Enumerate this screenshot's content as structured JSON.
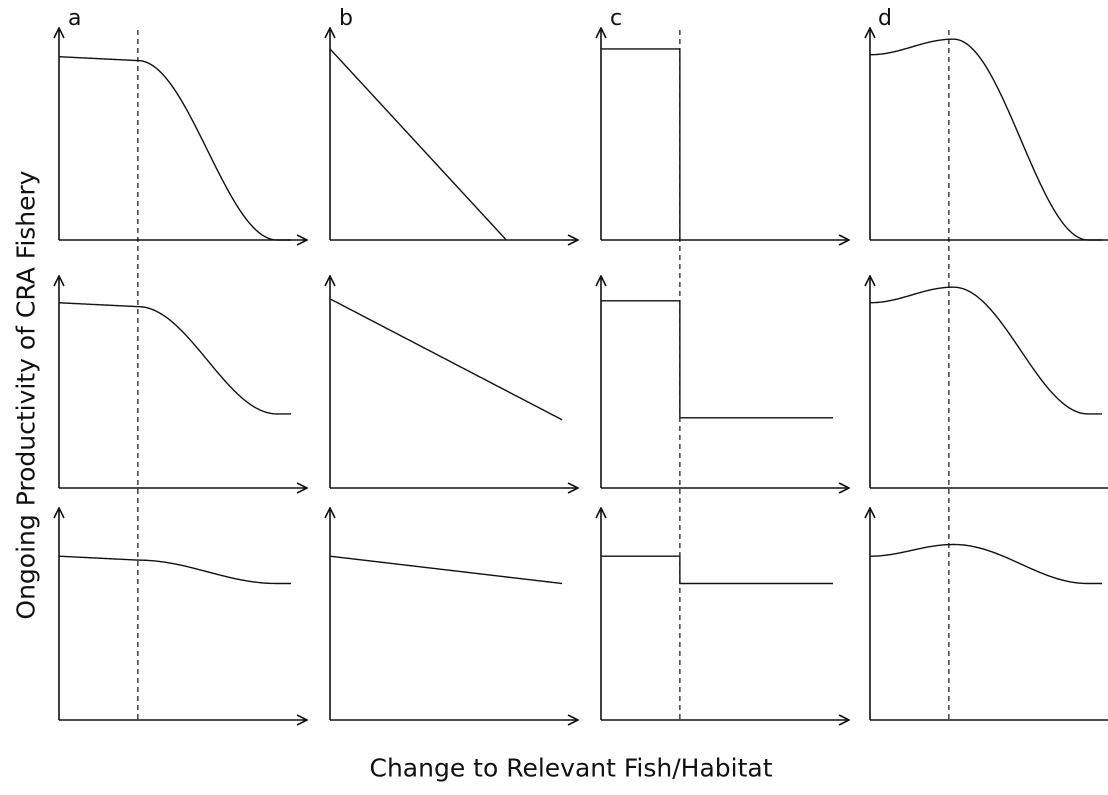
{
  "y_axis_title": "Ongoing Productivity of CRA Fishery",
  "x_axis_title": "Change to Relevant Fish/Habitat",
  "panel_labels": [
    "a",
    "b",
    "c",
    "d"
  ],
  "colors": {
    "ink": "#111111",
    "background": "#ffffff"
  },
  "chart_data": {
    "type": "line",
    "rows": 3,
    "cols": 4,
    "xlim": [
      0,
      1
    ],
    "ylim": [
      0,
      1
    ],
    "threshold_x": 0.34,
    "panels": [
      {
        "letter": "a",
        "row": 0,
        "col": 0,
        "kind": "sigmoid",
        "start": 0.94,
        "end": 0.0,
        "threshold": true
      },
      {
        "letter": "b",
        "row": 0,
        "col": 1,
        "kind": "linear",
        "start": 0.98,
        "end": 0.0,
        "end_x": 0.76,
        "threshold": false
      },
      {
        "letter": "c",
        "row": 0,
        "col": 2,
        "kind": "step",
        "start": 0.98,
        "end": 0.0,
        "end_x": 0.34,
        "threshold": true
      },
      {
        "letter": "d",
        "row": 0,
        "col": 3,
        "kind": "bump-sigmoid",
        "start": 0.95,
        "peak": 1.03,
        "end": 0.0,
        "threshold": true
      },
      {
        "letter": "",
        "row": 1,
        "col": 0,
        "kind": "sigmoid",
        "start": 0.95,
        "end": 0.38,
        "threshold": true
      },
      {
        "letter": "",
        "row": 1,
        "col": 1,
        "kind": "linear",
        "start": 0.97,
        "end": 0.35,
        "end_x": 1.0,
        "threshold": false
      },
      {
        "letter": "",
        "row": 1,
        "col": 2,
        "kind": "step",
        "start": 0.96,
        "end": 0.36,
        "end_x": 1.0,
        "threshold": true
      },
      {
        "letter": "",
        "row": 1,
        "col": 3,
        "kind": "bump-sigmoid",
        "start": 0.95,
        "peak": 1.03,
        "end": 0.38,
        "threshold": true
      },
      {
        "letter": "",
        "row": 2,
        "col": 0,
        "kind": "sigmoid",
        "start": 0.84,
        "end": 0.7,
        "threshold": true
      },
      {
        "letter": "",
        "row": 2,
        "col": 1,
        "kind": "linear",
        "start": 0.84,
        "end": 0.7,
        "end_x": 1.0,
        "threshold": false
      },
      {
        "letter": "",
        "row": 2,
        "col": 2,
        "kind": "step",
        "start": 0.84,
        "end": 0.7,
        "end_x": 1.0,
        "threshold": true
      },
      {
        "letter": "",
        "row": 2,
        "col": 3,
        "kind": "bump-sigmoid",
        "start": 0.84,
        "peak": 0.9,
        "end": 0.7,
        "threshold": true
      }
    ]
  }
}
